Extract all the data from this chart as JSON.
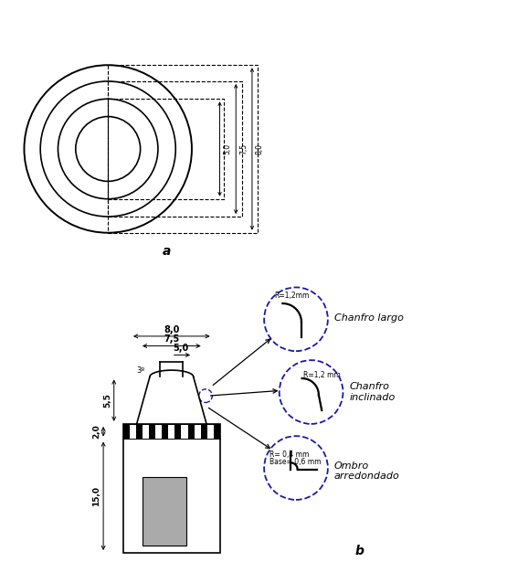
{
  "bg_color": "white",
  "line_color": "black",
  "blue_color": "#1a1aaa",
  "gray_fill": "#aaaaaa",
  "label_a": "a",
  "label_b": "b",
  "label_chanfro_largo": "Chanfro largo",
  "label_chanfro_inclinado": "Chanfro\ninclinado",
  "label_ombro": "Ombro\narredondado",
  "label_r12a": "R=1,2mm",
  "label_r12b": "R=1,2 mm",
  "label_r04": "R= 0,4 mm",
  "label_base": "Base= 0,6 mm",
  "label_55": "5,5",
  "label_20": "2,0",
  "label_150": "15,0",
  "label_30": "3º",
  "label_50": "5,0",
  "label_75": "7,5",
  "label_80": "8,0"
}
